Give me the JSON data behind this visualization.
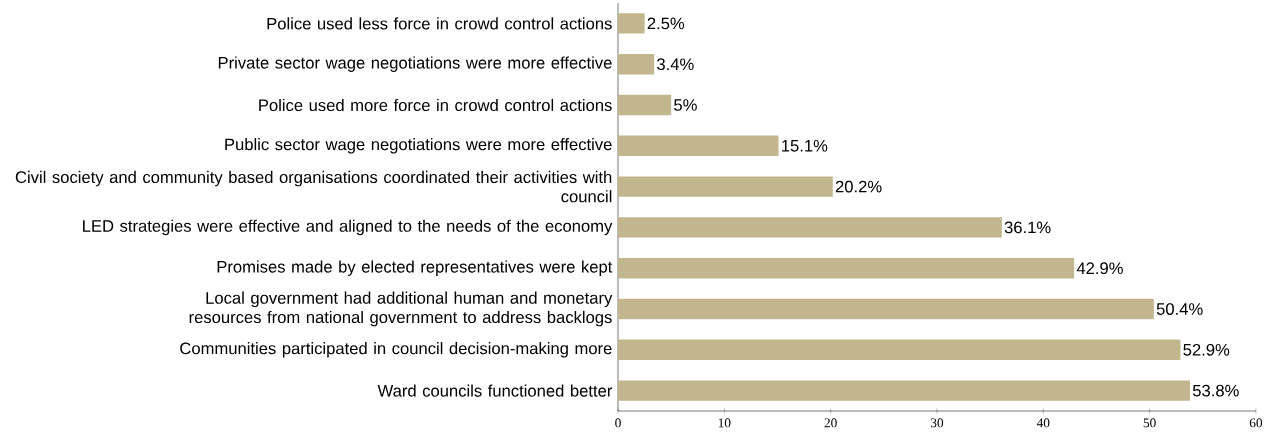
{
  "chart_data": {
    "type": "bar",
    "orientation": "horizontal",
    "categories": [
      "Police used less force in crowd control actions",
      "Private sector wage negotiations were more effective",
      "Police used more force in crowd control actions",
      "Public sector wage negotiations were more effective",
      "Civil society and community based organisations coordinated their activities with council",
      "LED strategies were effective and aligned to the needs of the economy",
      "Promises made by elected representatives were kept",
      "Local government had additional human and monetary resources from national government to address backlogs",
      "Communities participated in council decision-making more",
      "Ward councils functioned better"
    ],
    "values": [
      2.5,
      3.4,
      5,
      15.1,
      20.2,
      36.1,
      42.9,
      50.4,
      52.9,
      53.8
    ],
    "value_labels": [
      "2.5%",
      "3.4%",
      "5%",
      "15.1%",
      "20.2%",
      "36.1%",
      "42.9%",
      "50.4%",
      "52.9%",
      "53.8%"
    ],
    "color": "#c2b68e",
    "xlim": [
      0,
      60
    ],
    "xticks": [
      0,
      10,
      20,
      30,
      40,
      50,
      60
    ],
    "grid": false
  }
}
